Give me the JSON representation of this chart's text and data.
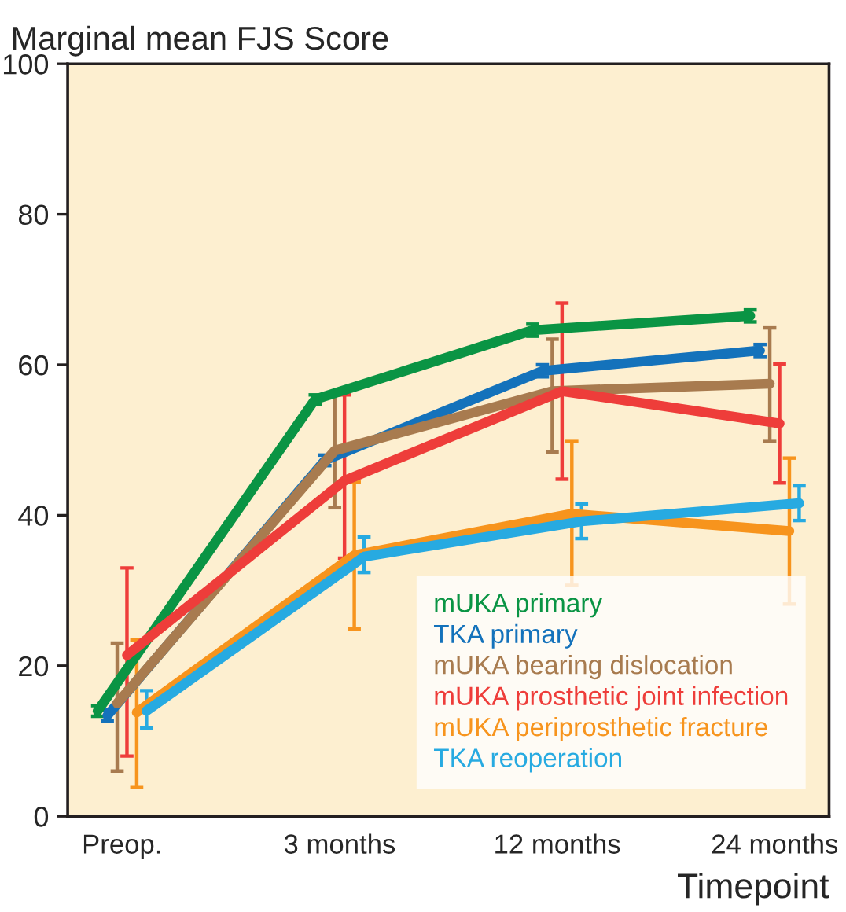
{
  "chart_data": {
    "type": "line",
    "ylabel": "Marginal mean FJS Score",
    "xlabel": "Timepoint",
    "categories": [
      "Preop.",
      "3 months",
      "12 months",
      "24 months"
    ],
    "ylim": [
      0,
      100
    ],
    "yticks": [
      0,
      20,
      40,
      60,
      80,
      100
    ],
    "grid": false,
    "legend": "bottom right",
    "marker": "none",
    "line_style": "solid",
    "series": [
      {
        "name": "mUKA primary",
        "color": "#0a9444",
        "values": [
          14,
          55.4,
          64.6,
          66.5
        ],
        "errors": [
          0.7,
          0.6,
          0.8,
          0.8
        ]
      },
      {
        "name": "TKA primary",
        "color": "#1472bb",
        "values": [
          13.4,
          47.3,
          59.2,
          61.9
        ],
        "errors": [
          0.7,
          0.7,
          0.8,
          0.8
        ]
      },
      {
        "name": "mUKA bearing dislocation",
        "color": "#a87b4f",
        "values": [
          15,
          48.6,
          56.5,
          57.5
        ],
        "errors": [
          [
            6,
            23
          ],
          [
            41,
            56
          ],
          [
            48.4,
            63.4
          ],
          [
            49.8,
            64.9
          ]
        ]
      },
      {
        "name": "mUKA prosthetic joint infection",
        "color": "#ee3d3a",
        "values": [
          21.4,
          44.6,
          56.5,
          52.2
        ],
        "errors": [
          [
            8,
            33
          ],
          [
            34.3,
            56
          ],
          [
            44.8,
            68.2
          ],
          [
            44.3,
            60.1
          ]
        ]
      },
      {
        "name": "mUKA periprosthetic fracture",
        "color": "#f7941d",
        "values": [
          13.8,
          34.7,
          40.2,
          37.9
        ],
        "errors": [
          [
            3.8,
            23.4
          ],
          [
            24.9,
            44.4
          ],
          [
            30.7,
            49.8
          ],
          [
            28.2,
            47.6
          ]
        ]
      },
      {
        "name": "TKA reoperation",
        "color": "#27aae1",
        "values": [
          14,
          34.5,
          39.2,
          41.6
        ],
        "errors": [
          [
            11.7,
            16.7
          ],
          [
            32.4,
            37.1
          ],
          [
            36.9,
            41.5
          ],
          [
            39.3,
            43.9
          ]
        ]
      }
    ]
  }
}
